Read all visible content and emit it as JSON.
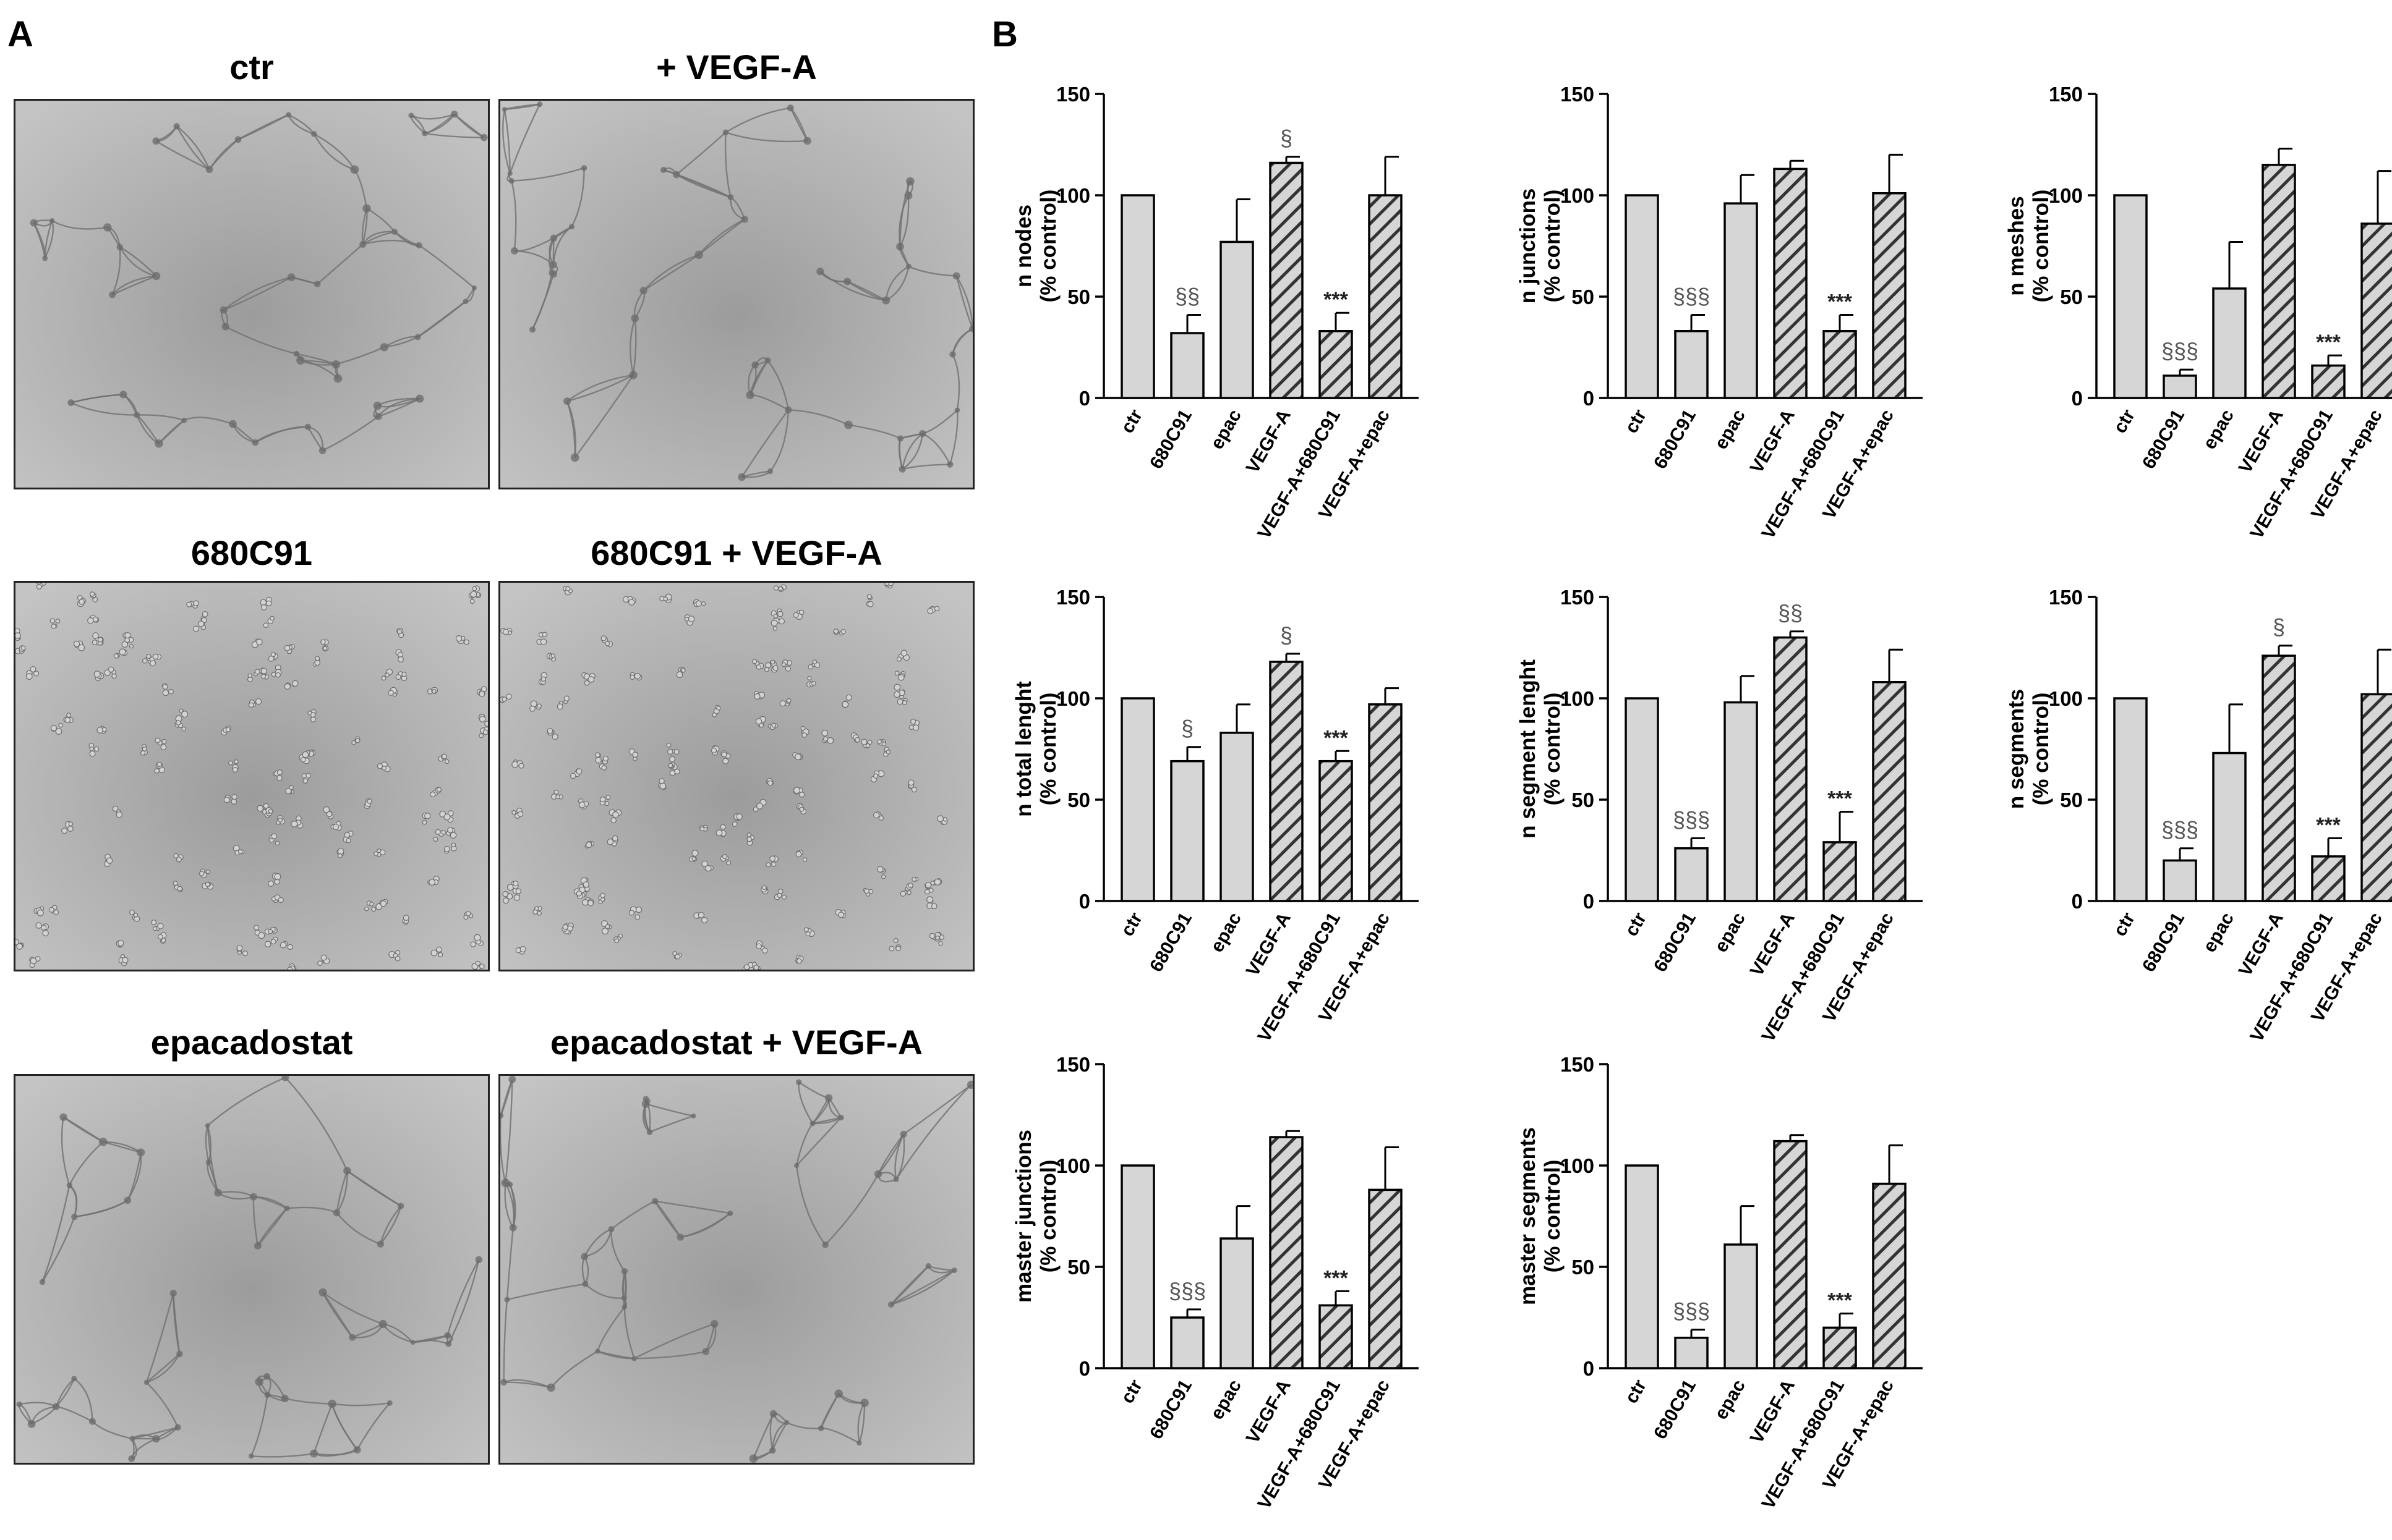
{
  "panel_labels": {
    "a": "A",
    "b": "B"
  },
  "micrographs": [
    {
      "title": "ctr",
      "style": "network"
    },
    {
      "title": "+ VEGF-A",
      "style": "network"
    },
    {
      "title": "680C91",
      "style": "scattered"
    },
    {
      "title": "680C91 +  VEGF-A",
      "style": "scattered"
    },
    {
      "title": "epacadostat",
      "style": "network"
    },
    {
      "title": "epacadostat + VEGF-A",
      "style": "network"
    }
  ],
  "colors": {
    "bar_fill": "#d6d6d6",
    "bar_stroke": "#000000",
    "hatch": "#333333",
    "image_bg": "#b8b8b8"
  },
  "chart_data": [
    {
      "type": "bar",
      "ylabel": [
        "n nodes",
        "(% control)"
      ],
      "ylim": [
        0,
        150
      ],
      "yticks": [
        0,
        50,
        100,
        150
      ],
      "categories": [
        "ctr",
        "680C91",
        "epac",
        "VEGF-A",
        "VEGF-A+680C91",
        "VEGF-A+epac"
      ],
      "hatched": [
        false,
        false,
        false,
        true,
        true,
        true
      ],
      "values": [
        100,
        32,
        77,
        116,
        33,
        100
      ],
      "errors": [
        0,
        9,
        21,
        3,
        9,
        19
      ],
      "annotations": [
        "",
        "§§",
        "",
        "§",
        "***",
        ""
      ]
    },
    {
      "type": "bar",
      "ylabel": [
        "n junctions",
        "(% control)"
      ],
      "ylim": [
        0,
        150
      ],
      "yticks": [
        0,
        50,
        100,
        150
      ],
      "categories": [
        "ctr",
        "680C91",
        "epac",
        "VEGF-A",
        "VEGF-A+680C91",
        "VEGF-A+epac"
      ],
      "hatched": [
        false,
        false,
        false,
        true,
        true,
        true
      ],
      "values": [
        100,
        33,
        96,
        113,
        33,
        101
      ],
      "errors": [
        0,
        8,
        14,
        4,
        8,
        19
      ],
      "annotations": [
        "",
        "§§§",
        "",
        "",
        "***",
        ""
      ]
    },
    {
      "type": "bar",
      "ylabel": [
        "n meshes",
        "(% control)"
      ],
      "ylim": [
        0,
        150
      ],
      "yticks": [
        0,
        50,
        100,
        150
      ],
      "categories": [
        "ctr",
        "680C91",
        "epac",
        "VEGF-A",
        "VEGF-A+680C91",
        "VEGF-A+epac"
      ],
      "hatched": [
        false,
        false,
        false,
        true,
        true,
        true
      ],
      "values": [
        100,
        11,
        54,
        115,
        16,
        86
      ],
      "errors": [
        0,
        3,
        23,
        8,
        5,
        26
      ],
      "annotations": [
        "",
        "§§§",
        "",
        "",
        "***",
        ""
      ]
    },
    {
      "type": "bar",
      "ylabel": [
        "n total lenght",
        "(% control)"
      ],
      "ylim": [
        0,
        150
      ],
      "yticks": [
        0,
        50,
        100,
        150
      ],
      "categories": [
        "ctr",
        "680C91",
        "epac",
        "VEGF-A",
        "VEGF-A+680C91",
        "VEGF-A+epac"
      ],
      "hatched": [
        false,
        false,
        false,
        true,
        true,
        true
      ],
      "values": [
        100,
        69,
        83,
        118,
        69,
        97
      ],
      "errors": [
        0,
        7,
        14,
        4,
        5,
        8
      ],
      "annotations": [
        "",
        "§",
        "",
        "§",
        "***",
        ""
      ]
    },
    {
      "type": "bar",
      "ylabel": [
        "n segment lenght",
        "(% control)"
      ],
      "ylim": [
        0,
        150
      ],
      "yticks": [
        0,
        50,
        100,
        150
      ],
      "categories": [
        "ctr",
        "680C91",
        "epac",
        "VEGF-A",
        "VEGF-A+680C91",
        "VEGF-A+epac"
      ],
      "hatched": [
        false,
        false,
        false,
        true,
        true,
        true
      ],
      "values": [
        100,
        26,
        98,
        130,
        29,
        108
      ],
      "errors": [
        0,
        5,
        13,
        3,
        15,
        16
      ],
      "annotations": [
        "",
        "§§§",
        "",
        "§§",
        "***",
        ""
      ]
    },
    {
      "type": "bar",
      "ylabel": [
        "n segments",
        "(% control)"
      ],
      "ylim": [
        0,
        150
      ],
      "yticks": [
        0,
        50,
        100,
        150
      ],
      "categories": [
        "ctr",
        "680C91",
        "epac",
        "VEGF-A",
        "VEGF-A+680C91",
        "VEGF-A+epac"
      ],
      "hatched": [
        false,
        false,
        false,
        true,
        true,
        true
      ],
      "values": [
        100,
        20,
        73,
        121,
        22,
        102
      ],
      "errors": [
        0,
        6,
        24,
        5,
        9,
        22
      ],
      "annotations": [
        "",
        "§§§",
        "",
        "§",
        "***",
        ""
      ]
    },
    {
      "type": "bar",
      "ylabel": [
        "master junctions",
        "(% control)"
      ],
      "ylim": [
        0,
        150
      ],
      "yticks": [
        0,
        50,
        100,
        150
      ],
      "categories": [
        "ctr",
        "680C91",
        "epac",
        "VEGF-A",
        "VEGF-A+680C91",
        "VEGF-A+epac"
      ],
      "hatched": [
        false,
        false,
        false,
        true,
        true,
        true
      ],
      "values": [
        100,
        25,
        64,
        114,
        31,
        88
      ],
      "errors": [
        0,
        4,
        16,
        3,
        7,
        21
      ],
      "annotations": [
        "",
        "§§§",
        "",
        "",
        "***",
        ""
      ]
    },
    {
      "type": "bar",
      "ylabel": [
        "master segments",
        "(% control)"
      ],
      "ylim": [
        0,
        150
      ],
      "yticks": [
        0,
        50,
        100,
        150
      ],
      "categories": [
        "ctr",
        "680C91",
        "epac",
        "VEGF-A",
        "VEGF-A+680C91",
        "VEGF-A+epac"
      ],
      "hatched": [
        false,
        false,
        false,
        true,
        true,
        true
      ],
      "values": [
        100,
        15,
        61,
        112,
        20,
        91
      ],
      "errors": [
        0,
        4,
        19,
        3,
        7,
        19
      ],
      "annotations": [
        "",
        "§§§",
        "",
        "",
        "***",
        ""
      ]
    }
  ]
}
